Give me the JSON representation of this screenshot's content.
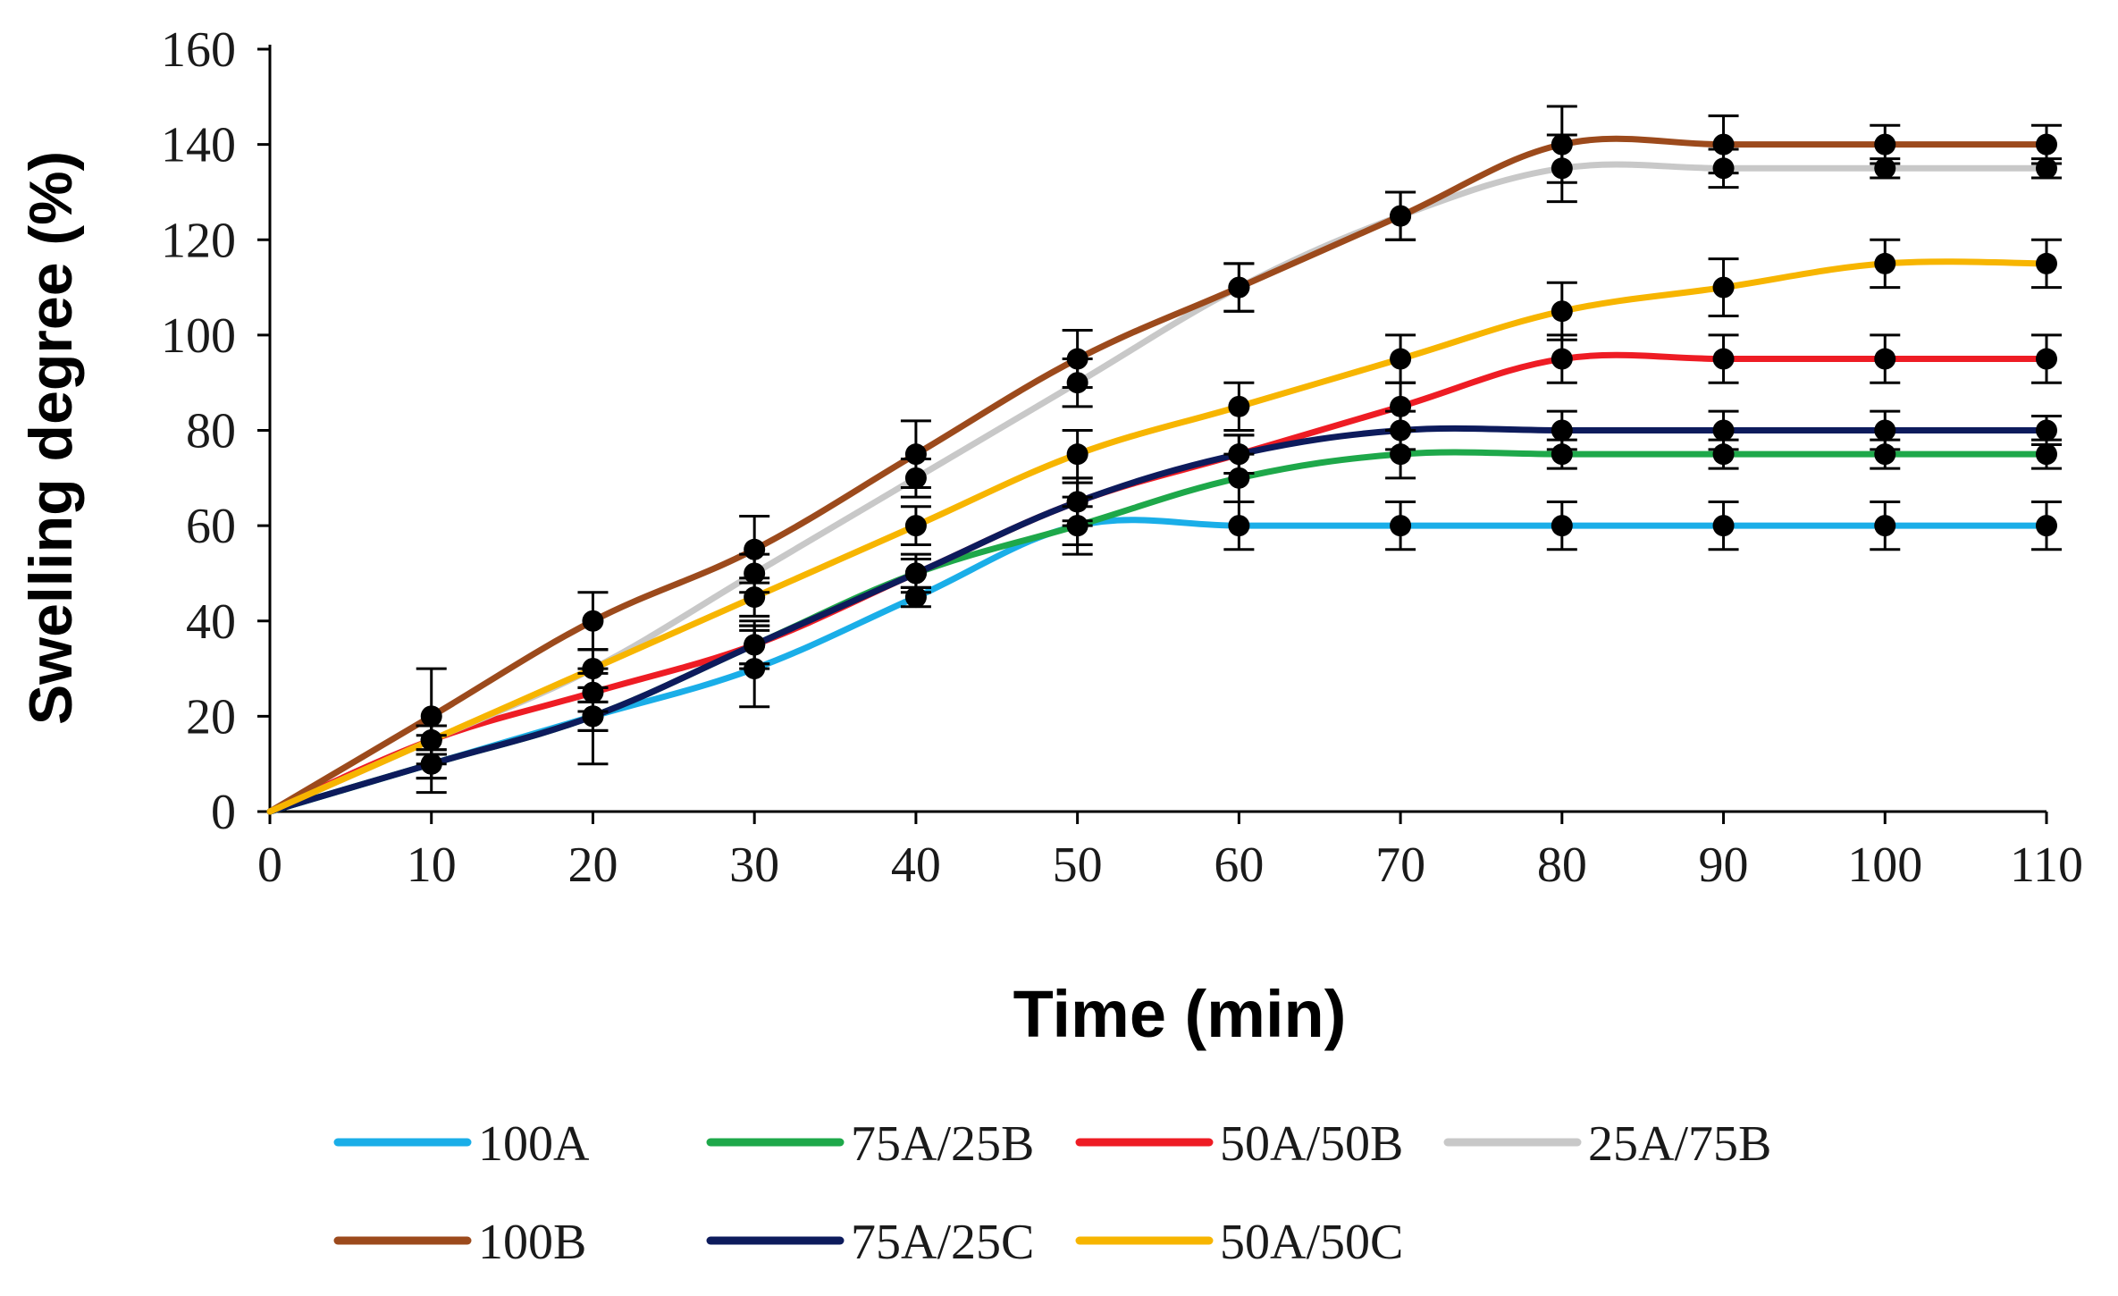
{
  "chart_data": {
    "type": "line",
    "title": "",
    "xlabel": "Time (min)",
    "ylabel": "Swelling degree (%)",
    "x": [
      0,
      10,
      20,
      30,
      40,
      50,
      60,
      70,
      80,
      90,
      100,
      110
    ],
    "xlim": [
      0,
      110
    ],
    "ylim": [
      0,
      160
    ],
    "xticks": [
      "0",
      "10",
      "20",
      "30",
      "40",
      "50",
      "60",
      "70",
      "80",
      "90",
      "100",
      "110"
    ],
    "yticks": [
      "0",
      "20",
      "40",
      "60",
      "80",
      "100",
      "120",
      "140",
      "160"
    ],
    "grid": false,
    "legend_position": "bottom",
    "series": [
      {
        "name": "100A",
        "color": "#1aaee8",
        "values": [
          0,
          10,
          20,
          30,
          45,
          60,
          60,
          60,
          60,
          60,
          60,
          60
        ],
        "errors": [
          0,
          6,
          10,
          8,
          2,
          6,
          5,
          5,
          5,
          5,
          5,
          5
        ]
      },
      {
        "name": "75A/25B",
        "color": "#1ea84a",
        "values": [
          0,
          10,
          20,
          35,
          50,
          60,
          70,
          75,
          75,
          75,
          75,
          75
        ],
        "errors": [
          0,
          3,
          3,
          5,
          4,
          4,
          5,
          5,
          3,
          3,
          3,
          3
        ]
      },
      {
        "name": "50A/50B",
        "color": "#ee1c24",
        "values": [
          0,
          15,
          25,
          35,
          50,
          65,
          75,
          85,
          95,
          95,
          95,
          95
        ],
        "errors": [
          0,
          3,
          4,
          4,
          3,
          5,
          4,
          5,
          5,
          5,
          5,
          5
        ]
      },
      {
        "name": "25A/75B",
        "color": "#c8c8c8",
        "values": [
          0,
          15,
          30,
          50,
          70,
          90,
          110,
          125,
          135,
          135,
          135,
          135
        ],
        "errors": [
          0,
          3,
          4,
          4,
          4,
          5,
          5,
          5,
          7,
          4,
          2,
          2
        ]
      },
      {
        "name": "100B",
        "color": "#9c4a1c",
        "values": [
          0,
          20,
          40,
          55,
          75,
          95,
          110,
          125,
          140,
          140,
          140,
          140
        ],
        "errors": [
          0,
          10,
          6,
          7,
          7,
          6,
          5,
          5,
          8,
          6,
          4,
          4
        ]
      },
      {
        "name": "75A/25C",
        "color": "#0d1b5c",
        "values": [
          0,
          10,
          20,
          35,
          50,
          65,
          75,
          80,
          80,
          80,
          80,
          80
        ],
        "errors": [
          0,
          3,
          3,
          4,
          3,
          4,
          4,
          4,
          4,
          4,
          4,
          3
        ]
      },
      {
        "name": "50A/50C",
        "color": "#f7b500",
        "values": [
          0,
          15,
          30,
          45,
          60,
          75,
          85,
          95,
          105,
          110,
          115,
          115
        ],
        "errors": [
          0,
          3,
          4,
          4,
          4,
          5,
          5,
          5,
          6,
          6,
          5,
          5
        ]
      }
    ]
  }
}
